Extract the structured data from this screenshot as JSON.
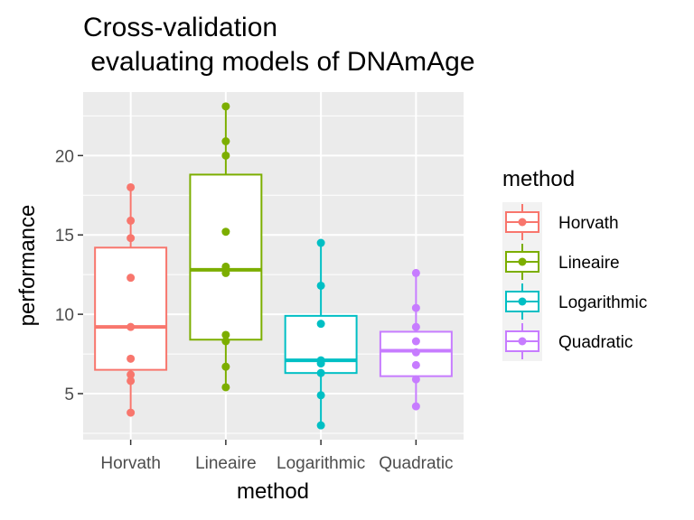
{
  "chart_data": {
    "type": "boxplot",
    "title_lines": [
      "Cross-validation",
      " evaluating models of DNAmAge"
    ],
    "xlabel": "method",
    "ylabel": "performance",
    "categories": [
      "Horvath",
      "Lineaire",
      "Logarithmic",
      "Quadratic"
    ],
    "ylim": [
      2.1,
      24.0
    ],
    "yticks": [
      5,
      10,
      15,
      20
    ],
    "grid": true,
    "legend": {
      "title": "method",
      "position": "right",
      "entries": [
        "Horvath",
        "Lineaire",
        "Logarithmic",
        "Quadratic"
      ]
    },
    "colors": {
      "Horvath": "#F8766D",
      "Lineaire": "#7CAE00",
      "Logarithmic": "#00BFC4",
      "Quadratic": "#C77CFF"
    },
    "series": [
      {
        "name": "Horvath",
        "box": {
          "min": 3.8,
          "q1": 6.5,
          "median": 9.2,
          "q3": 14.2,
          "max": 18.0
        },
        "points": [
          3.8,
          5.8,
          6.2,
          7.2,
          9.2,
          12.3,
          14.8,
          15.9,
          18.0
        ]
      },
      {
        "name": "Lineaire",
        "box": {
          "min": 5.4,
          "q1": 8.4,
          "median": 12.8,
          "q3": 18.8,
          "max": 23.1
        },
        "points": [
          5.4,
          6.7,
          8.3,
          8.7,
          12.6,
          13.0,
          15.2,
          20.0,
          20.9,
          23.1
        ]
      },
      {
        "name": "Logarithmic",
        "box": {
          "min": 3.0,
          "q1": 6.3,
          "median": 7.1,
          "q3": 9.9,
          "max": 14.5
        },
        "points": [
          3.0,
          4.9,
          6.3,
          6.9,
          7.1,
          9.4,
          11.8,
          14.5
        ]
      },
      {
        "name": "Quadratic",
        "box": {
          "min": 4.2,
          "q1": 6.1,
          "median": 7.7,
          "q3": 8.9,
          "max": 12.6
        },
        "points": [
          4.2,
          5.9,
          6.8,
          7.6,
          8.3,
          9.2,
          10.4,
          12.6
        ]
      }
    ]
  }
}
